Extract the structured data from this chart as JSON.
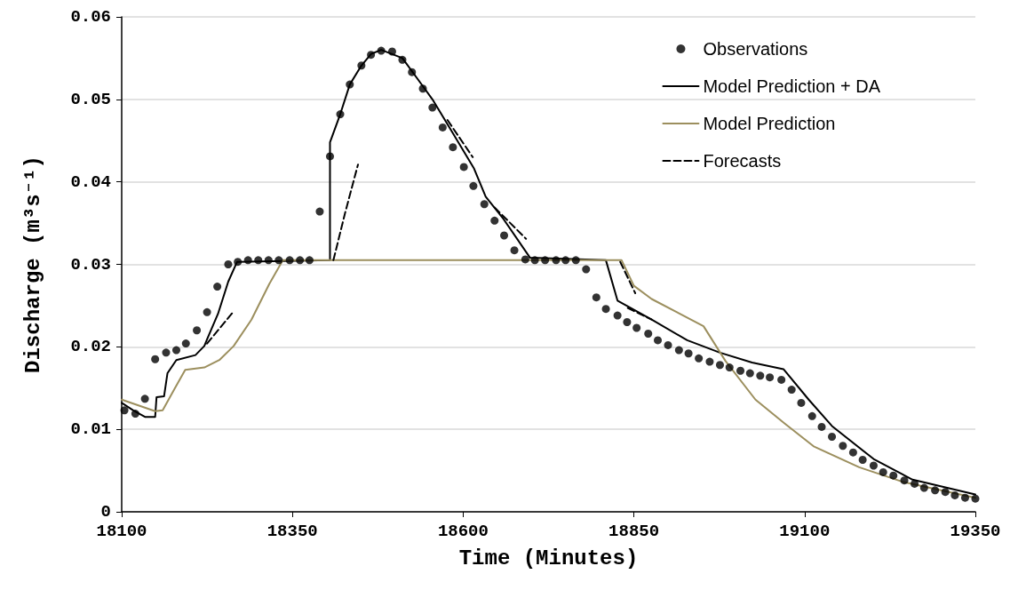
{
  "chart_data": {
    "type": "line",
    "xlabel": "Time (Minutes)",
    "ylabel": "Discharge (m³s⁻¹)",
    "xlim": [
      18100,
      19350
    ],
    "xticks": [
      18100,
      18350,
      18600,
      18850,
      19100,
      19350
    ],
    "ylim": [
      0,
      0.06
    ],
    "yticks": [
      0,
      0.01,
      0.02,
      0.03,
      0.04,
      0.05,
      0.06
    ],
    "grid": "y",
    "legend": "top right",
    "series": [
      {
        "name": "Observations",
        "type": "scatter",
        "marker": "circle",
        "color": "#000000",
        "x": [
          18104,
          18120,
          18134,
          18149,
          18165,
          18180,
          18194,
          18210,
          18225,
          18240,
          18256,
          18270,
          18285,
          18300,
          18315,
          18330,
          18346,
          18361,
          18375,
          18390,
          18405,
          18420,
          18434,
          18451,
          18465,
          18480,
          18496,
          18511,
          18525,
          18541,
          18555,
          18570,
          18585,
          18601,
          18615,
          18631,
          18646,
          18660,
          18675,
          18691,
          18705,
          18720,
          18736,
          18750,
          18765,
          18780,
          18795,
          18809,
          18826,
          18840,
          18854,
          18871,
          18885,
          18900,
          18916,
          18930,
          18945,
          18961,
          18976,
          18990,
          19006,
          19020,
          19035,
          19049,
          19066,
          19081,
          19095,
          19111,
          19125,
          19140,
          19156,
          19171,
          19185,
          19201,
          19215,
          19230,
          19246,
          19261,
          19275,
          19291,
          19306,
          19320,
          19335,
          19350
        ],
        "values": [
          0.0123,
          0.0119,
          0.0137,
          0.0185,
          0.0193,
          0.0196,
          0.0204,
          0.022,
          0.0242,
          0.0273,
          0.03,
          0.0303,
          0.0305,
          0.0305,
          0.0305,
          0.0305,
          0.0305,
          0.0305,
          0.0305,
          0.0364,
          0.0431,
          0.0482,
          0.0518,
          0.0541,
          0.0554,
          0.0559,
          0.0558,
          0.0548,
          0.0533,
          0.0513,
          0.049,
          0.0466,
          0.0442,
          0.0418,
          0.0395,
          0.0373,
          0.0353,
          0.0335,
          0.0317,
          0.0306,
          0.0305,
          0.0305,
          0.0305,
          0.0305,
          0.0305,
          0.0294,
          0.026,
          0.0246,
          0.0238,
          0.023,
          0.0223,
          0.0216,
          0.0208,
          0.0202,
          0.0196,
          0.0192,
          0.0186,
          0.0182,
          0.0178,
          0.0175,
          0.0171,
          0.0168,
          0.0165,
          0.0163,
          0.016,
          0.0148,
          0.0132,
          0.0116,
          0.0103,
          0.0091,
          0.008,
          0.0072,
          0.0063,
          0.0056,
          0.0048,
          0.0044,
          0.0038,
          0.0034,
          0.0029,
          0.0026,
          0.0024,
          0.002,
          0.0017,
          0.0016
        ]
      },
      {
        "name": "Model Prediction + DA",
        "marker": "none",
        "line_style": "solid",
        "color": "#000000",
        "x": [
          18100,
          18117,
          18134,
          18149,
          18151,
          18162,
          18167,
          18180,
          18208,
          18221,
          18225,
          18241,
          18256,
          18269,
          18405,
          18405,
          18420,
          18434,
          18451,
          18465,
          18480,
          18511,
          18541,
          18555,
          18585,
          18616,
          18633,
          18659,
          18698,
          18809,
          18826,
          18876,
          18928,
          18976,
          19023,
          19069,
          19106,
          19140,
          19201,
          19258,
          19350
        ],
        "values": [
          0.0132,
          0.0123,
          0.0115,
          0.0115,
          0.0139,
          0.014,
          0.0168,
          0.0184,
          0.019,
          0.0201,
          0.0209,
          0.024,
          0.0279,
          0.0303,
          0.0305,
          0.0448,
          0.0482,
          0.0518,
          0.0541,
          0.0555,
          0.056,
          0.055,
          0.0516,
          0.05,
          0.0459,
          0.0416,
          0.0382,
          0.0355,
          0.0308,
          0.0305,
          0.0256,
          0.0233,
          0.0208,
          0.0193,
          0.0181,
          0.0173,
          0.0136,
          0.0104,
          0.0064,
          0.0039,
          0.0021
        ]
      },
      {
        "name": "Model Prediction",
        "marker": "none",
        "line_style": "solid",
        "color": "#9c8f5e",
        "x": [
          18100,
          18149,
          18160,
          18178,
          18193,
          18221,
          18243,
          18264,
          18290,
          18316,
          18336,
          18832,
          18850,
          18876,
          18952,
          18984,
          19028,
          19071,
          19114,
          19180,
          19245,
          19350
        ],
        "values": [
          0.0136,
          0.0122,
          0.0123,
          0.015,
          0.0172,
          0.0175,
          0.0184,
          0.0201,
          0.0233,
          0.0276,
          0.0305,
          0.0305,
          0.0274,
          0.0258,
          0.0225,
          0.0183,
          0.0136,
          0.0107,
          0.0079,
          0.0054,
          0.0036,
          0.0017
        ]
      },
      {
        "name": "Forecasts",
        "marker": "none",
        "line_style": "dashed",
        "color": "#000000",
        "x": [
          18225,
          18264
        ],
        "values": [
          0.0204,
          0.0243
        ]
      },
      {
        "marker": "none",
        "line_style": "dashed",
        "color": "#000000",
        "x": [
          18410,
          18427,
          18446
        ],
        "values": [
          0.0305,
          0.0362,
          0.0421
        ]
      },
      {
        "marker": "none",
        "line_style": "dashed",
        "color": "#000000",
        "x": [
          18577,
          18614
        ],
        "values": [
          0.0475,
          0.043
        ]
      },
      {
        "marker": "none",
        "line_style": "dashed",
        "color": "#000000",
        "x": [
          18646,
          18692
        ],
        "values": [
          0.0369,
          0.0331
        ]
      },
      {
        "marker": "none",
        "line_style": "dashed",
        "color": "#000000",
        "x": [
          18830,
          18852
        ],
        "values": [
          0.0303,
          0.0265
        ]
      },
      {
        "marker": "none",
        "line_style": "dashed",
        "color": "#000000",
        "x": [
          18841,
          18876
        ],
        "values": [
          0.0247,
          0.0233
        ]
      }
    ]
  }
}
